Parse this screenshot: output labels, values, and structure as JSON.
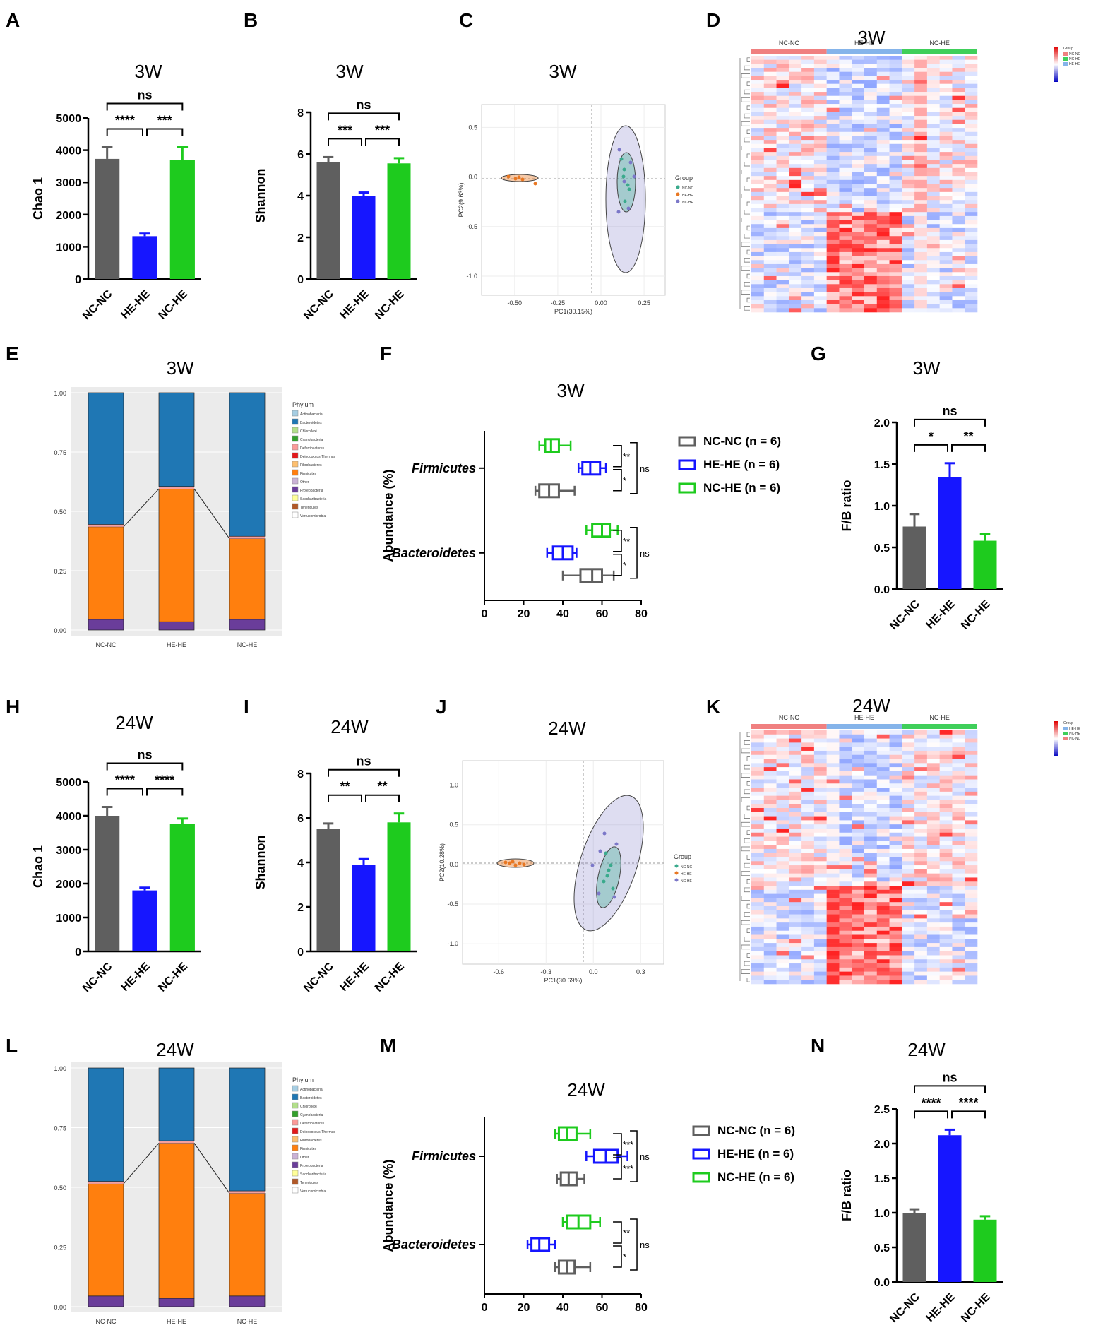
{
  "colors": {
    "nc_nc": "#5f5f5f",
    "he_he": "#1616ff",
    "nc_he": "#1ecb1e",
    "pca_nc_nc": "#3aaa8c",
    "pca_he_he": "#e87722",
    "pca_nc_he": "#7b77c8"
  },
  "chart_data": [
    {
      "panel": "A",
      "type": "bar",
      "title": "3W",
      "ylabel": "Chao 1",
      "ylim": [
        0,
        5000
      ],
      "yticks": [
        "0",
        "1000",
        "2000",
        "3000",
        "4000",
        "5000"
      ],
      "categories": [
        "NC-NC",
        "HE-HE",
        "NC-HE"
      ],
      "values": [
        3730,
        1330,
        3690
      ],
      "errors": [
        360,
        80,
        400
      ],
      "comparisons": [
        {
          "from": 0,
          "to": 1,
          "label": "****"
        },
        {
          "from": 1,
          "to": 2,
          "label": "***"
        },
        {
          "from": 0,
          "to": 2,
          "label": "ns"
        }
      ]
    },
    {
      "panel": "B",
      "type": "bar",
      "title": "3W",
      "ylabel": "Shannon",
      "ylim": [
        0,
        8
      ],
      "yticks": [
        "0",
        "2",
        "4",
        "6",
        "8"
      ],
      "categories": [
        "NC-NC",
        "HE-HE",
        "NC-HE"
      ],
      "values": [
        5.6,
        4.0,
        5.55
      ],
      "errors": [
        0.25,
        0.15,
        0.25
      ],
      "comparisons": [
        {
          "from": 0,
          "to": 1,
          "label": "***"
        },
        {
          "from": 1,
          "to": 2,
          "label": "***"
        },
        {
          "from": 0,
          "to": 2,
          "label": "ns"
        }
      ]
    },
    {
      "panel": "C",
      "type": "scatter",
      "title": "3W",
      "xlabel": "PC1(30.15%)",
      "ylabel": "PC2(9.63%)",
      "xticks": [
        "-0.50",
        "-0.25",
        "0.00",
        "0.25"
      ],
      "yticks": [
        "0.5",
        "0.0",
        "-0.5",
        "-1.0"
      ],
      "legend_title": "Group",
      "legend": [
        "NC-NC",
        "HE-HE",
        "NC-HE"
      ]
    },
    {
      "panel": "D",
      "type": "heatmap",
      "title": "3W",
      "groups": [
        "NC-NC",
        "HE-HE",
        "NC-HE"
      ],
      "legend_title": "Group",
      "legend": [
        "NC-NC",
        "NC-HE",
        "HE-HE"
      ]
    },
    {
      "panel": "E",
      "type": "bar",
      "stacked": true,
      "title": "3W",
      "categories": [
        "NC-NC",
        "HE-HE",
        "NC-HE"
      ],
      "yticks": [
        "0.00",
        "0.25",
        "0.50",
        "0.75",
        "1.00"
      ],
      "legend_title": "Phylum",
      "legend": [
        "Actinobacteria",
        "Bacteroidetes",
        "Chloroflexi",
        "Cyanobacteria",
        "Deferribacteres",
        "Deinococcus-Thermus",
        "Fibrobacteres",
        "Firmicutes",
        "Other",
        "Proteobacteria",
        "Saccharibacteria",
        "Tenericutes",
        "Verrucomicrobia"
      ],
      "series": [
        {
          "name": "Firmicutes",
          "values": [
            0.39,
            0.56,
            0.34
          ]
        },
        {
          "name": "Bacteroidetes",
          "values": [
            0.56,
            0.4,
            0.61
          ]
        }
      ]
    },
    {
      "panel": "F",
      "type": "box",
      "title": "3W",
      "ylabel": "Abundance (%)",
      "xticks": [
        "0",
        "20",
        "40",
        "60",
        "80"
      ],
      "taxa": [
        "Firmicutes",
        "Bacteroidetes"
      ],
      "legend": [
        "NC-NC (n = 6)",
        "HE-HE (n = 6)",
        "NC-HE (n = 6)"
      ],
      "series": [
        {
          "name": "NC-HE",
          "Firmicutes": [
            28,
            31,
            34,
            38,
            44
          ],
          "Bacteroidetes": [
            52,
            55,
            60,
            64,
            68
          ]
        },
        {
          "name": "HE-HE",
          "Firmicutes": [
            48,
            50,
            54,
            59,
            62
          ],
          "Bacteroidetes": [
            32,
            35,
            40,
            45,
            47
          ]
        },
        {
          "name": "NC-NC",
          "Firmicutes": [
            26,
            28,
            33,
            38,
            46
          ],
          "Bacteroidetes": [
            40,
            49,
            55,
            60,
            66
          ]
        }
      ],
      "sig_firmicutes": [
        "**",
        "*",
        "ns"
      ],
      "sig_bacteroidetes": [
        "**",
        "*",
        "ns"
      ]
    },
    {
      "panel": "G",
      "type": "bar",
      "title": "3W",
      "ylabel": "F/B ratio",
      "ylim": [
        0,
        2.0
      ],
      "yticks": [
        "0.0",
        "0.5",
        "1.0",
        "1.5",
        "2.0"
      ],
      "categories": [
        "NC-NC",
        "HE-HE",
        "NC-HE"
      ],
      "values": [
        0.75,
        1.34,
        0.58
      ],
      "errors": [
        0.15,
        0.17,
        0.08
      ],
      "comparisons": [
        {
          "from": 0,
          "to": 1,
          "label": "*"
        },
        {
          "from": 1,
          "to": 2,
          "label": "**"
        },
        {
          "from": 0,
          "to": 2,
          "label": "ns"
        }
      ]
    },
    {
      "panel": "H",
      "type": "bar",
      "title": "24W",
      "ylabel": "Chao 1",
      "ylim": [
        0,
        5000
      ],
      "yticks": [
        "0",
        "1000",
        "2000",
        "3000",
        "4000",
        "5000"
      ],
      "categories": [
        "NC-NC",
        "HE-HE",
        "NC-HE"
      ],
      "values": [
        4000,
        1800,
        3750
      ],
      "errors": [
        260,
        80,
        170
      ],
      "comparisons": [
        {
          "from": 0,
          "to": 1,
          "label": "****"
        },
        {
          "from": 1,
          "to": 2,
          "label": "****"
        },
        {
          "from": 0,
          "to": 2,
          "label": "ns"
        }
      ]
    },
    {
      "panel": "I",
      "type": "bar",
      "title": "24W",
      "ylabel": "Shannon",
      "ylim": [
        0,
        8
      ],
      "yticks": [
        "0",
        "2",
        "4",
        "6",
        "8"
      ],
      "categories": [
        "NC-NC",
        "HE-HE",
        "NC-HE"
      ],
      "values": [
        5.5,
        3.9,
        5.8
      ],
      "errors": [
        0.25,
        0.25,
        0.4
      ],
      "comparisons": [
        {
          "from": 0,
          "to": 1,
          "label": "**"
        },
        {
          "from": 1,
          "to": 2,
          "label": "**"
        },
        {
          "from": 0,
          "to": 2,
          "label": "ns"
        }
      ]
    },
    {
      "panel": "J",
      "type": "scatter",
      "title": "24W",
      "xlabel": "PC1(30.69%)",
      "ylabel": "PC2(10.28%)",
      "xticks": [
        "-0.6",
        "-0.3",
        "0.0",
        "0.3"
      ],
      "yticks": [
        "1.0",
        "0.5",
        "0.0",
        "-0.5",
        "-1.0"
      ],
      "legend_title": "Group",
      "legend": [
        "NC-NC",
        "HE-HE",
        "NC-HE"
      ]
    },
    {
      "panel": "K",
      "type": "heatmap",
      "title": "24W",
      "groups": [
        "NC-NC",
        "HE-HE",
        "NC-HE"
      ],
      "legend_title": "Group",
      "legend": [
        "HE-HE",
        "NC-HE",
        "NC-NC"
      ]
    },
    {
      "panel": "L",
      "type": "bar",
      "stacked": true,
      "title": "24W",
      "categories": [
        "NC-NC",
        "HE-HE",
        "NC-HE"
      ],
      "yticks": [
        "0.00",
        "0.25",
        "0.50",
        "0.75",
        "1.00"
      ],
      "legend_title": "Phylum",
      "legend": [
        "Actinobacteria",
        "Bacteroidetes",
        "Chloroflexi",
        "Cyanobacteria",
        "Deferribacteres",
        "Deinococcus-Thermus",
        "Fibrobacteres",
        "Firmicutes",
        "Other",
        "Proteobacteria",
        "Saccharibacteria",
        "Tenericutes",
        "Verrucomicrobia"
      ],
      "series": [
        {
          "name": "Firmicutes",
          "values": [
            0.47,
            0.65,
            0.43
          ]
        },
        {
          "name": "Bacteroidetes",
          "values": [
            0.43,
            0.3,
            0.49
          ]
        }
      ]
    },
    {
      "panel": "M",
      "type": "box",
      "title": "24W",
      "ylabel": "Abundance (%)",
      "xticks": [
        "0",
        "20",
        "40",
        "60",
        "80"
      ],
      "taxa": [
        "Firmicutes",
        "Bacteroidetes"
      ],
      "legend": [
        "NC-NC (n = 6)",
        "HE-HE (n = 6)",
        "NC-HE (n = 6)"
      ],
      "series": [
        {
          "name": "NC-HE",
          "Firmicutes": [
            36,
            38,
            42,
            47,
            54
          ],
          "Bacteroidetes": [
            40,
            42,
            48,
            54,
            59
          ]
        },
        {
          "name": "HE-HE",
          "Firmicutes": [
            52,
            56,
            62,
            68,
            73
          ],
          "Bacteroidetes": [
            22,
            24,
            28,
            33,
            36
          ]
        },
        {
          "name": "NC-NC",
          "Firmicutes": [
            37,
            39,
            43,
            47,
            51
          ],
          "Bacteroidetes": [
            36,
            38,
            42,
            46,
            54
          ]
        }
      ],
      "sig_firmicutes": [
        "***",
        "***",
        "ns"
      ],
      "sig_bacteroidetes": [
        "**",
        "*",
        "ns"
      ]
    },
    {
      "panel": "N",
      "type": "bar",
      "title": "24W",
      "ylabel": "F/B ratio",
      "ylim": [
        0,
        2.5
      ],
      "yticks": [
        "0.0",
        "0.5",
        "1.0",
        "1.5",
        "2.0",
        "2.5"
      ],
      "categories": [
        "NC-NC",
        "HE-HE",
        "NC-HE"
      ],
      "values": [
        1.0,
        2.12,
        0.9
      ],
      "errors": [
        0.05,
        0.08,
        0.05
      ],
      "comparisons": [
        {
          "from": 0,
          "to": 1,
          "label": "****"
        },
        {
          "from": 1,
          "to": 2,
          "label": "****"
        },
        {
          "from": 0,
          "to": 2,
          "label": "ns"
        }
      ]
    }
  ]
}
